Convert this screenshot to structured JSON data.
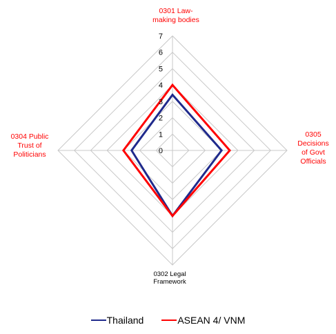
{
  "chart_data": {
    "type": "radar",
    "axes": [
      {
        "label": "0301 Law-\nmaking bodies",
        "color": "#ff0000"
      },
      {
        "label": "0305\nDecisions\nof Govt\nOfficials",
        "color": "#ff0000"
      },
      {
        "label": "0302 Legal\nFramework",
        "color": "#000000"
      },
      {
        "label": "0304 Public\nTrust of\nPoliticians",
        "color": "#ff0000"
      }
    ],
    "rlim": [
      0,
      7
    ],
    "ticks": [
      "0",
      "1",
      "2",
      "3",
      "4",
      "5",
      "6",
      "7"
    ],
    "grid": true,
    "legend_position": "bottom",
    "series": [
      {
        "name": "Thailand",
        "color": "#1f2a8c",
        "values": [
          3.4,
          3.0,
          4.0,
          2.5
        ]
      },
      {
        "name": "ASEAN 4/ VNM",
        "color": "#ff0000",
        "values": [
          4.0,
          3.5,
          4.0,
          3.0
        ]
      }
    ]
  }
}
